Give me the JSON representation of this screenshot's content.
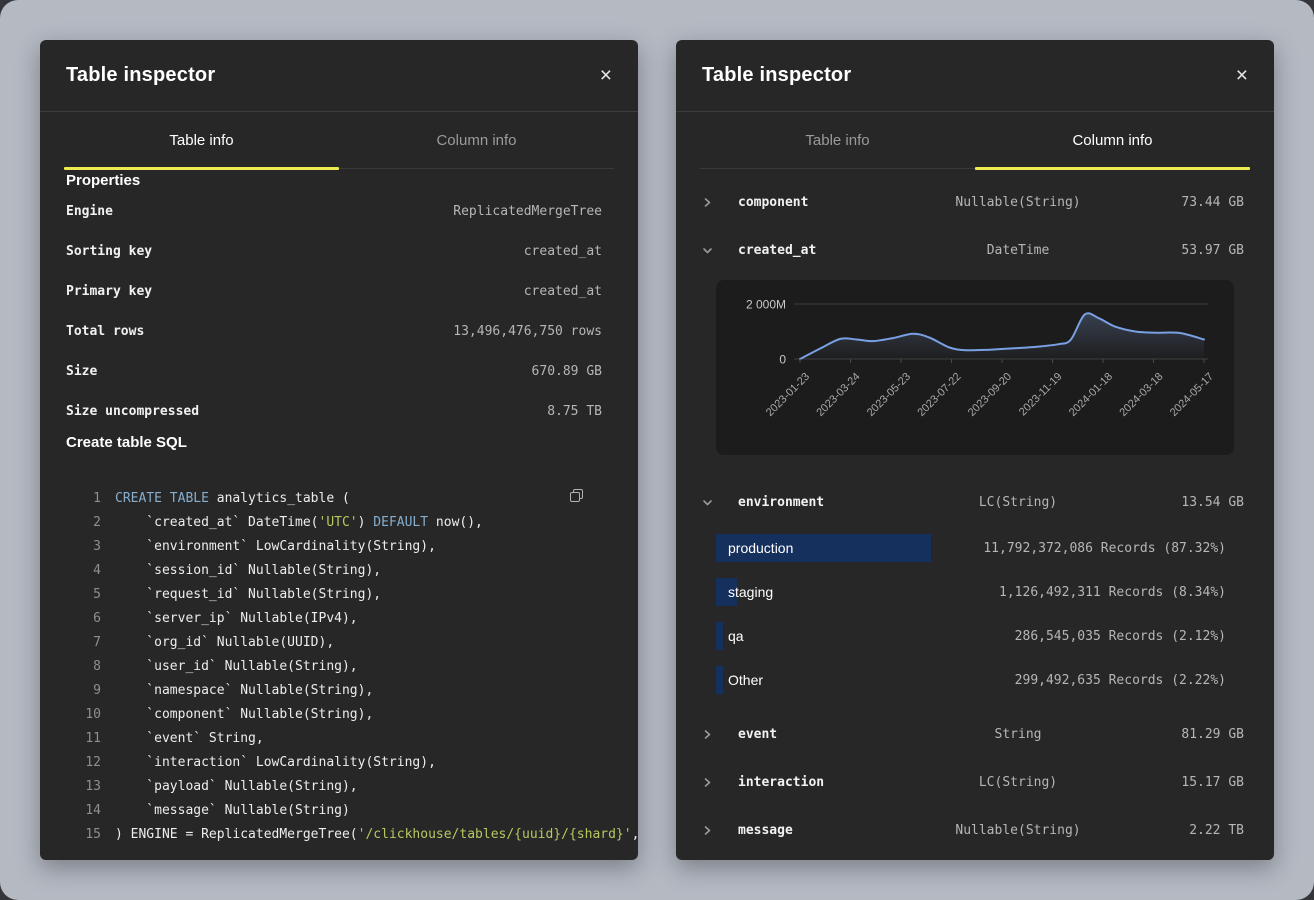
{
  "accent_color": "#eceb4f",
  "bar_color": "#16305e",
  "icons": {
    "close": "×"
  },
  "sql_colors": {
    "keyword": "#85aecf",
    "string": "#b6c860",
    "plain": "#ededed",
    "line_number": "#8f8f8f"
  },
  "left_panel": {
    "title": "Table inspector",
    "tabs": [
      {
        "label": "Table info",
        "active": true
      },
      {
        "label": "Column info",
        "active": false
      }
    ],
    "properties_title": "Properties",
    "properties": [
      {
        "label": "Engine",
        "value": "ReplicatedMergeTree"
      },
      {
        "label": "Sorting key",
        "value": "created_at"
      },
      {
        "label": "Primary key",
        "value": "created_at"
      },
      {
        "label": "Total rows",
        "value": "13,496,476,750 rows"
      },
      {
        "label": "Size",
        "value": "670.89 GB"
      },
      {
        "label": "Size uncompressed",
        "value": "8.75 TB"
      }
    ],
    "sql_title": "Create table SQL",
    "sql_lines": [
      {
        "segs": [
          {
            "t": "CREATE TABLE",
            "c": "kw"
          },
          {
            "t": " analytics_table (",
            "c": "pl"
          }
        ]
      },
      {
        "segs": [
          {
            "t": "    `created_at` DateTime(",
            "c": "pl"
          },
          {
            "t": "'UTC'",
            "c": "str"
          },
          {
            "t": ") ",
            "c": "pl"
          },
          {
            "t": "DEFAULT",
            "c": "kw"
          },
          {
            "t": " now(),",
            "c": "pl"
          }
        ]
      },
      {
        "segs": [
          {
            "t": "    `environment` LowCardinality(String),",
            "c": "pl"
          }
        ]
      },
      {
        "segs": [
          {
            "t": "    `session_id` Nullable(String),",
            "c": "pl"
          }
        ]
      },
      {
        "segs": [
          {
            "t": "    `request_id` Nullable(String),",
            "c": "pl"
          }
        ]
      },
      {
        "segs": [
          {
            "t": "    `server_ip` Nullable(IPv4),",
            "c": "pl"
          }
        ]
      },
      {
        "segs": [
          {
            "t": "    `org_id` Nullable(UUID),",
            "c": "pl"
          }
        ]
      },
      {
        "segs": [
          {
            "t": "    `user_id` Nullable(String),",
            "c": "pl"
          }
        ]
      },
      {
        "segs": [
          {
            "t": "    `namespace` Nullable(String),",
            "c": "pl"
          }
        ]
      },
      {
        "segs": [
          {
            "t": "    `component` Nullable(String),",
            "c": "pl"
          }
        ]
      },
      {
        "segs": [
          {
            "t": "    `event` String,",
            "c": "pl"
          }
        ]
      },
      {
        "segs": [
          {
            "t": "    `interaction` LowCardinality(String),",
            "c": "pl"
          }
        ]
      },
      {
        "segs": [
          {
            "t": "    `payload` Nullable(String),",
            "c": "pl"
          }
        ]
      },
      {
        "segs": [
          {
            "t": "    `message` Nullable(String)",
            "c": "pl"
          }
        ]
      },
      {
        "segs": [
          {
            "t": ") ENGINE = ReplicatedMergeTree(",
            "c": "pl"
          },
          {
            "t": "'/clickhouse/tables/{uuid}/{shard}'",
            "c": "str"
          },
          {
            "t": ",",
            "c": "pl"
          }
        ]
      }
    ]
  },
  "right_panel": {
    "title": "Table inspector",
    "tabs": [
      {
        "label": "Table info",
        "active": false
      },
      {
        "label": "Column info",
        "active": true
      }
    ],
    "columns": [
      {
        "name": "component",
        "type": "Nullable(String)",
        "size": "73.44 GB",
        "state": "collapsed"
      },
      {
        "name": "created_at",
        "type": "DateTime",
        "size": "53.97 GB",
        "state": "expanded",
        "detail": "chart"
      },
      {
        "name": "environment",
        "type": "LC(String)",
        "size": "13.54 GB",
        "state": "expanded",
        "detail": "values",
        "values": [
          {
            "label": "production",
            "records": "11,792,372,086 Records (87.32%)",
            "pct": 87.32
          },
          {
            "label": "staging",
            "records": "1,126,492,311 Records (8.34%)",
            "pct": 8.34
          },
          {
            "label": "qa",
            "records": "286,545,035 Records (2.12%)",
            "pct": 2.12
          },
          {
            "label": "Other",
            "records": "299,492,635 Records (2.22%)",
            "pct": 2.22
          }
        ]
      },
      {
        "name": "event",
        "type": "String",
        "size": "81.29 GB",
        "state": "collapsed"
      },
      {
        "name": "interaction",
        "type": "LC(String)",
        "size": "15.17 GB",
        "state": "collapsed"
      },
      {
        "name": "message",
        "type": "Nullable(String)",
        "size": "2.22 TB",
        "state": "collapsed"
      }
    ]
  },
  "chart_data": {
    "type": "area",
    "title": "created_at value histogram",
    "xlabel": "",
    "ylabel": "",
    "legend": "none",
    "grid": "horizontal-only",
    "y_unit": "M (millions of records)",
    "ylim": [
      0,
      2200
    ],
    "y_tick_labels": [
      "2 000M",
      "0"
    ],
    "y_ticks_values": [
      2000,
      0
    ],
    "x_tick_labels": [
      "2023-01-23",
      "2023-03-24",
      "2023-05-23",
      "2023-07-22",
      "2023-09-20",
      "2023-11-19",
      "2024-01-18",
      "2024-03-18",
      "2024-05-17"
    ],
    "line_color": "#7aa0e4",
    "area_fill": "#4f5e7a",
    "points_x_fraction_value_M": [
      [
        0.0,
        0
      ],
      [
        0.05,
        380
      ],
      [
        0.1,
        730
      ],
      [
        0.14,
        710
      ],
      [
        0.18,
        650
      ],
      [
        0.23,
        760
      ],
      [
        0.28,
        920
      ],
      [
        0.32,
        780
      ],
      [
        0.37,
        420
      ],
      [
        0.41,
        320
      ],
      [
        0.47,
        340
      ],
      [
        0.53,
        390
      ],
      [
        0.59,
        450
      ],
      [
        0.64,
        540
      ],
      [
        0.67,
        700
      ],
      [
        0.705,
        1620
      ],
      [
        0.74,
        1480
      ],
      [
        0.78,
        1180
      ],
      [
        0.83,
        1000
      ],
      [
        0.88,
        955
      ],
      [
        0.94,
        945
      ],
      [
        1.0,
        710
      ]
    ]
  }
}
